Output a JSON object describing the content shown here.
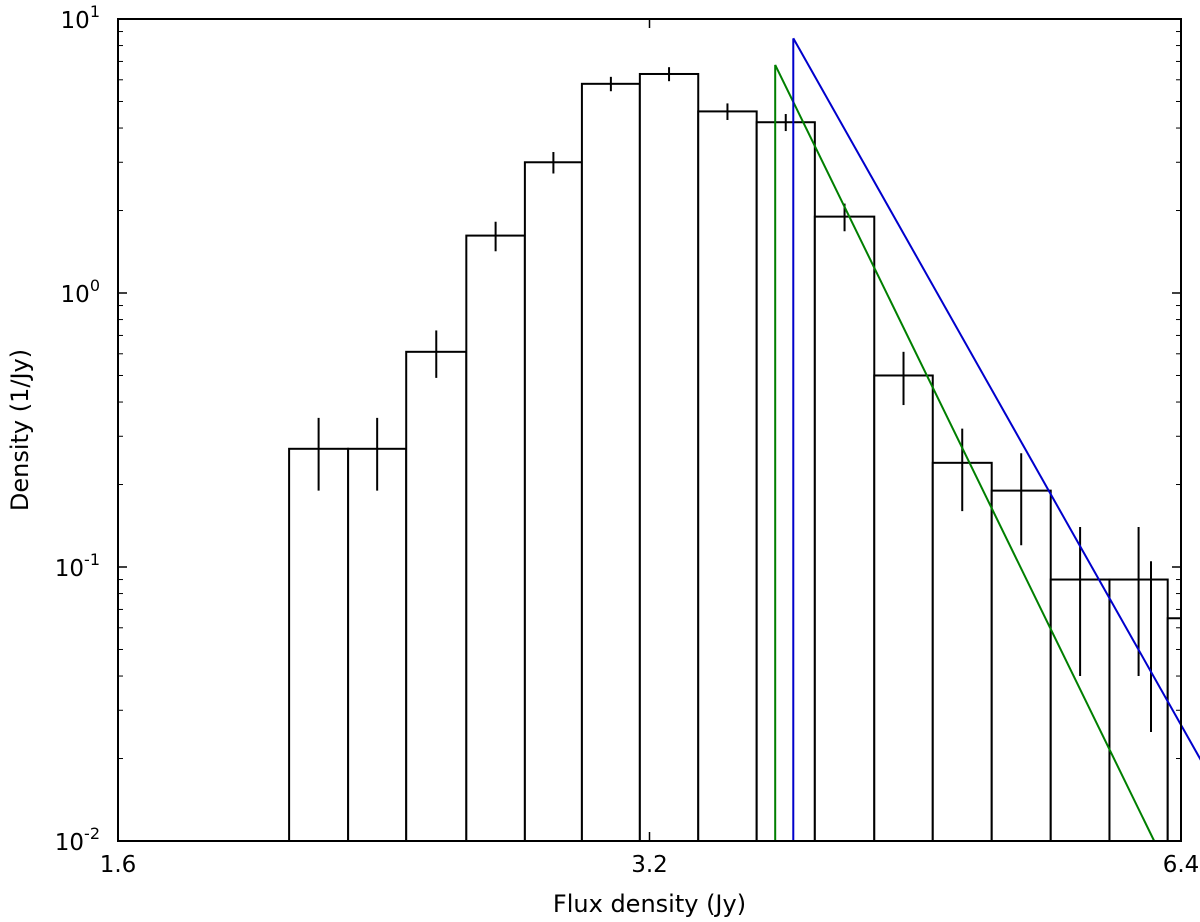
{
  "chart_data": {
    "type": "bar",
    "title": "",
    "xlabel": "Flux density (Jy)",
    "ylabel": "Density (1/Jy)",
    "x_scale": "log2",
    "y_scale": "log10",
    "xlim": [
      1.6,
      6.4
    ],
    "ylim": [
      0.01,
      10
    ],
    "x_ticks": [
      {
        "value": 1.6,
        "label": "1.6"
      },
      {
        "value": 3.2,
        "label": "3.2"
      },
      {
        "value": 6.4,
        "label": "6.4"
      }
    ],
    "y_ticks": [
      {
        "value": 0.01,
        "base": "10",
        "exp": "-2"
      },
      {
        "value": 0.1,
        "base": "10",
        "exp": "-1"
      },
      {
        "value": 1,
        "base": "10",
        "exp": "0"
      },
      {
        "value": 10,
        "base": "10",
        "exp": "1"
      }
    ],
    "bins": [
      {
        "x0": 2.0,
        "x1": 2.16,
        "y": 0.27,
        "err": 0.08
      },
      {
        "x0": 2.16,
        "x1": 2.33,
        "y": 0.27,
        "err": 0.08
      },
      {
        "x0": 2.33,
        "x1": 2.52,
        "y": 0.61,
        "err": 0.12
      },
      {
        "x0": 2.52,
        "x1": 2.72,
        "y": 1.62,
        "err": 0.2
      },
      {
        "x0": 2.72,
        "x1": 2.93,
        "y": 3.0,
        "err": 0.27
      },
      {
        "x0": 2.93,
        "x1": 3.16,
        "y": 5.8,
        "err": 0.35
      },
      {
        "x0": 3.16,
        "x1": 3.41,
        "y": 6.3,
        "err": 0.37
      },
      {
        "x0": 3.41,
        "x1": 3.68,
        "y": 4.6,
        "err": 0.32
      },
      {
        "x0": 3.68,
        "x1": 3.97,
        "y": 4.2,
        "err": 0.3
      },
      {
        "x0": 3.97,
        "x1": 4.29,
        "y": 1.9,
        "err": 0.22
      },
      {
        "x0": 4.29,
        "x1": 4.63,
        "y": 0.5,
        "err": 0.11
      },
      {
        "x0": 4.63,
        "x1": 5.0,
        "y": 0.24,
        "err": 0.08
      },
      {
        "x0": 5.0,
        "x1": 5.4,
        "y": 0.19,
        "err": 0.07
      },
      {
        "x0": 5.4,
        "x1": 5.83,
        "y": 0.09,
        "err": 0.05
      },
      {
        "x0": 5.83,
        "x1": 6.29,
        "y": 0.09,
        "err": 0.05
      },
      {
        "x0": 6.29,
        "x1": 6.79,
        "y": 0.065,
        "err": 0.04
      }
    ],
    "series": [
      {
        "color": "#007f00",
        "x_start": 3.77,
        "points": [
          [
            3.77,
            6.8
          ],
          [
            6.18,
            0.01
          ]
        ]
      },
      {
        "color": "#0000cc",
        "x_start": 3.86,
        "points": [
          [
            3.86,
            8.5
          ],
          [
            6.79,
            0.0135
          ]
        ]
      }
    ],
    "grid": false,
    "legend": "none"
  }
}
